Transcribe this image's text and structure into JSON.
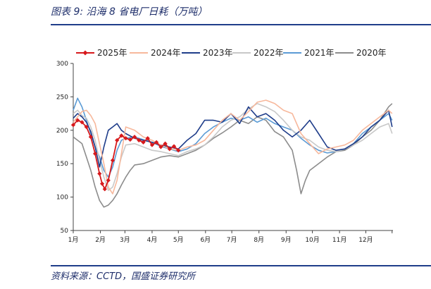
{
  "header": {
    "title": "图表 9:  沿海 8 省电厂日耗（万吨）"
  },
  "footer": {
    "source": "资料来源：CCTD，国盛证券研究所"
  },
  "chart_data": {
    "type": "line",
    "title": "沿海8省电厂日耗（万吨）",
    "xlabel": "",
    "ylabel": "万吨",
    "ylim": [
      50,
      300
    ],
    "yticks": [
      50,
      100,
      150,
      200,
      250,
      300
    ],
    "xlim": [
      0,
      365
    ],
    "month_ticks": [
      0,
      31,
      59,
      90,
      120,
      151,
      181,
      212,
      243,
      273,
      304,
      334,
      364
    ],
    "xtick_labels": [
      "1月",
      "2月",
      "3月",
      "4月",
      "5月",
      "6月",
      "7月",
      "8月",
      "9月",
      "10月",
      "11月",
      "12月"
    ],
    "legend_position": "top",
    "series": [
      {
        "name": "2025年",
        "color": "#d7191c",
        "markers": true,
        "x": [
          0,
          5,
          10,
          15,
          20,
          25,
          30,
          33,
          36,
          40,
          45,
          50,
          55,
          60,
          65,
          70,
          75,
          80,
          85,
          90,
          95,
          100,
          105,
          110,
          115,
          120
        ],
        "y": [
          208,
          215,
          212,
          205,
          190,
          165,
          135,
          120,
          112,
          125,
          155,
          185,
          192,
          188,
          186,
          190,
          185,
          182,
          188,
          178,
          182,
          175,
          180,
          172,
          176,
          170
        ]
      },
      {
        "name": "2024年",
        "color": "#f7b89c",
        "x": [
          0,
          5,
          10,
          15,
          20,
          25,
          30,
          35,
          40,
          45,
          50,
          55,
          60,
          70,
          80,
          90,
          100,
          110,
          120,
          130,
          140,
          150,
          160,
          170,
          180,
          190,
          200,
          210,
          220,
          230,
          240,
          250,
          260,
          270,
          280,
          290,
          300,
          310,
          320,
          330,
          340,
          350,
          360,
          364
        ],
        "y": [
          212,
          220,
          228,
          230,
          222,
          210,
          180,
          150,
          115,
          105,
          125,
          165,
          205,
          200,
          190,
          185,
          178,
          172,
          170,
          175,
          178,
          185,
          200,
          215,
          225,
          215,
          228,
          242,
          245,
          240,
          230,
          225,
          195,
          180,
          165,
          172,
          175,
          178,
          185,
          200,
          210,
          220,
          230,
          225
        ]
      },
      {
        "name": "2023年",
        "color": "#1f3d8a",
        "x": [
          0,
          5,
          10,
          15,
          20,
          25,
          30,
          35,
          40,
          45,
          50,
          55,
          60,
          70,
          80,
          90,
          100,
          110,
          120,
          130,
          140,
          150,
          160,
          170,
          180,
          190,
          200,
          210,
          220,
          230,
          240,
          250,
          260,
          270,
          280,
          290,
          300,
          310,
          320,
          330,
          340,
          350,
          360,
          364
        ],
        "y": [
          218,
          225,
          220,
          212,
          198,
          175,
          145,
          175,
          200,
          205,
          210,
          200,
          195,
          188,
          185,
          182,
          178,
          175,
          172,
          185,
          195,
          215,
          215,
          212,
          225,
          210,
          235,
          220,
          225,
          215,
          200,
          190,
          200,
          215,
          195,
          175,
          170,
          172,
          180,
          190,
          205,
          215,
          230,
          205
        ]
      },
      {
        "name": "2022年",
        "color": "#c8c8c8",
        "x": [
          0,
          5,
          10,
          15,
          20,
          25,
          30,
          35,
          40,
          45,
          50,
          55,
          60,
          70,
          80,
          90,
          100,
          110,
          120,
          130,
          140,
          150,
          160,
          170,
          180,
          190,
          200,
          210,
          220,
          230,
          240,
          250,
          260,
          270,
          280,
          290,
          300,
          310,
          320,
          330,
          340,
          350,
          360,
          364
        ],
        "y": [
          225,
          230,
          222,
          218,
          205,
          185,
          155,
          130,
          110,
          115,
          135,
          160,
          178,
          180,
          175,
          170,
          168,
          165,
          162,
          168,
          172,
          178,
          190,
          205,
          215,
          220,
          232,
          240,
          235,
          228,
          215,
          200,
          190,
          185,
          175,
          170,
          168,
          172,
          178,
          185,
          195,
          205,
          210,
          195
        ]
      },
      {
        "name": "2021年",
        "color": "#5b9bd5",
        "x": [
          0,
          5,
          10,
          15,
          20,
          25,
          30,
          35,
          40,
          45,
          50,
          55,
          60,
          70,
          80,
          90,
          100,
          110,
          120,
          130,
          140,
          150,
          160,
          170,
          180,
          190,
          200,
          210,
          220,
          230,
          240,
          250,
          260,
          270,
          280,
          290,
          300,
          310,
          320,
          330,
          340,
          350,
          360,
          364
        ],
        "y": [
          230,
          248,
          235,
          215,
          195,
          175,
          160,
          140,
          130,
          145,
          170,
          185,
          188,
          190,
          186,
          182,
          176,
          172,
          168,
          172,
          180,
          195,
          205,
          212,
          218,
          215,
          220,
          212,
          218,
          210,
          205,
          200,
          188,
          178,
          170,
          166,
          168,
          172,
          180,
          195,
          205,
          215,
          225,
          215
        ]
      },
      {
        "name": "2020年",
        "color": "#8c8c8c",
        "x": [
          0,
          5,
          10,
          15,
          20,
          25,
          30,
          35,
          40,
          45,
          50,
          55,
          60,
          65,
          70,
          80,
          90,
          100,
          110,
          120,
          130,
          140,
          150,
          160,
          170,
          180,
          190,
          200,
          210,
          220,
          230,
          240,
          250,
          255,
          260,
          265,
          270,
          280,
          290,
          300,
          310,
          320,
          330,
          340,
          350,
          360,
          364
        ],
        "y": [
          190,
          185,
          180,
          160,
          140,
          115,
          95,
          85,
          88,
          95,
          105,
          118,
          130,
          140,
          148,
          150,
          155,
          160,
          162,
          160,
          165,
          170,
          178,
          188,
          196,
          205,
          215,
          210,
          220,
          215,
          198,
          190,
          170,
          140,
          105,
          125,
          140,
          150,
          160,
          168,
          170,
          178,
          190,
          200,
          215,
          235,
          240
        ]
      }
    ]
  }
}
